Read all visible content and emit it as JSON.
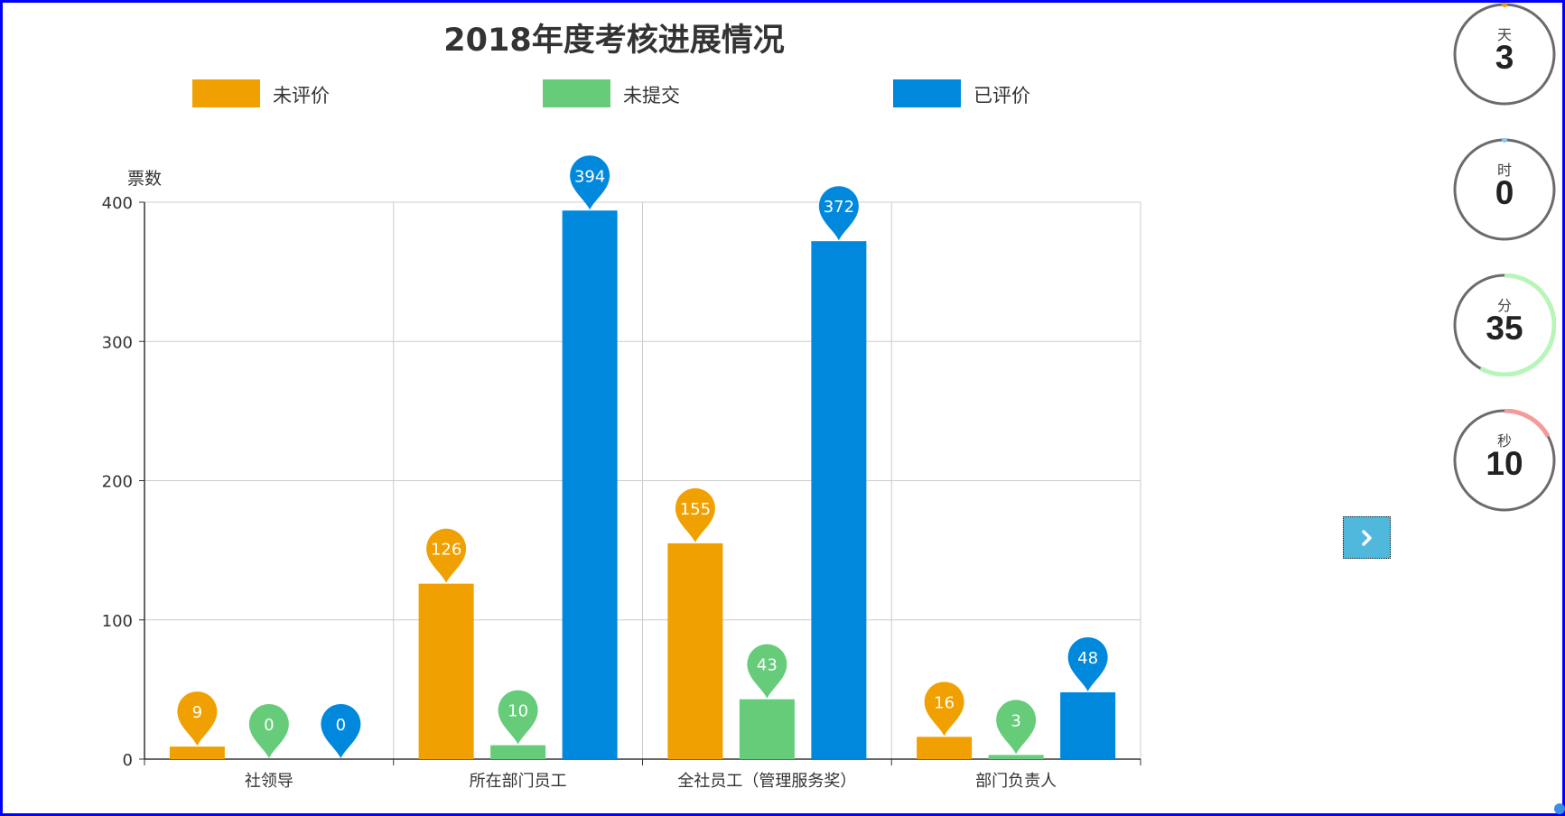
{
  "colors": {
    "unrated": "#f0a000",
    "unsubmitted": "#66cc7a",
    "rated": "#0088dd"
  },
  "chart_data": {
    "type": "bar",
    "title": "2018年度考核进展情况",
    "ylabel": "票数",
    "xlabel": "",
    "ylim": [
      0,
      400
    ],
    "yticks": [
      0,
      100,
      200,
      300,
      400
    ],
    "categories": [
      "社领导",
      "所在部门员工",
      "全社员工（管理服务奖）",
      "部门负责人"
    ],
    "series": [
      {
        "name": "未评价",
        "values": [
          9,
          126,
          155,
          16
        ]
      },
      {
        "name": "未提交",
        "values": [
          0,
          10,
          43,
          3
        ]
      },
      {
        "name": "已评价",
        "values": [
          0,
          394,
          372,
          48
        ]
      }
    ],
    "grid": true,
    "legend": "top",
    "data_labels": "pin-markers"
  },
  "countdown": [
    {
      "unit": "天",
      "value": "3",
      "accent": "#f0a000",
      "progress": 0
    },
    {
      "unit": "时",
      "value": "0",
      "accent": "#8fc3f0",
      "progress": 0
    },
    {
      "unit": "分",
      "value": "35",
      "accent": "#b8f5b8",
      "progress": 0.58
    },
    {
      "unit": "秒",
      "value": "10",
      "accent": "#f59a9a",
      "progress": 0.17
    }
  ],
  "next_button": {
    "icon": "chevron-right-icon"
  }
}
